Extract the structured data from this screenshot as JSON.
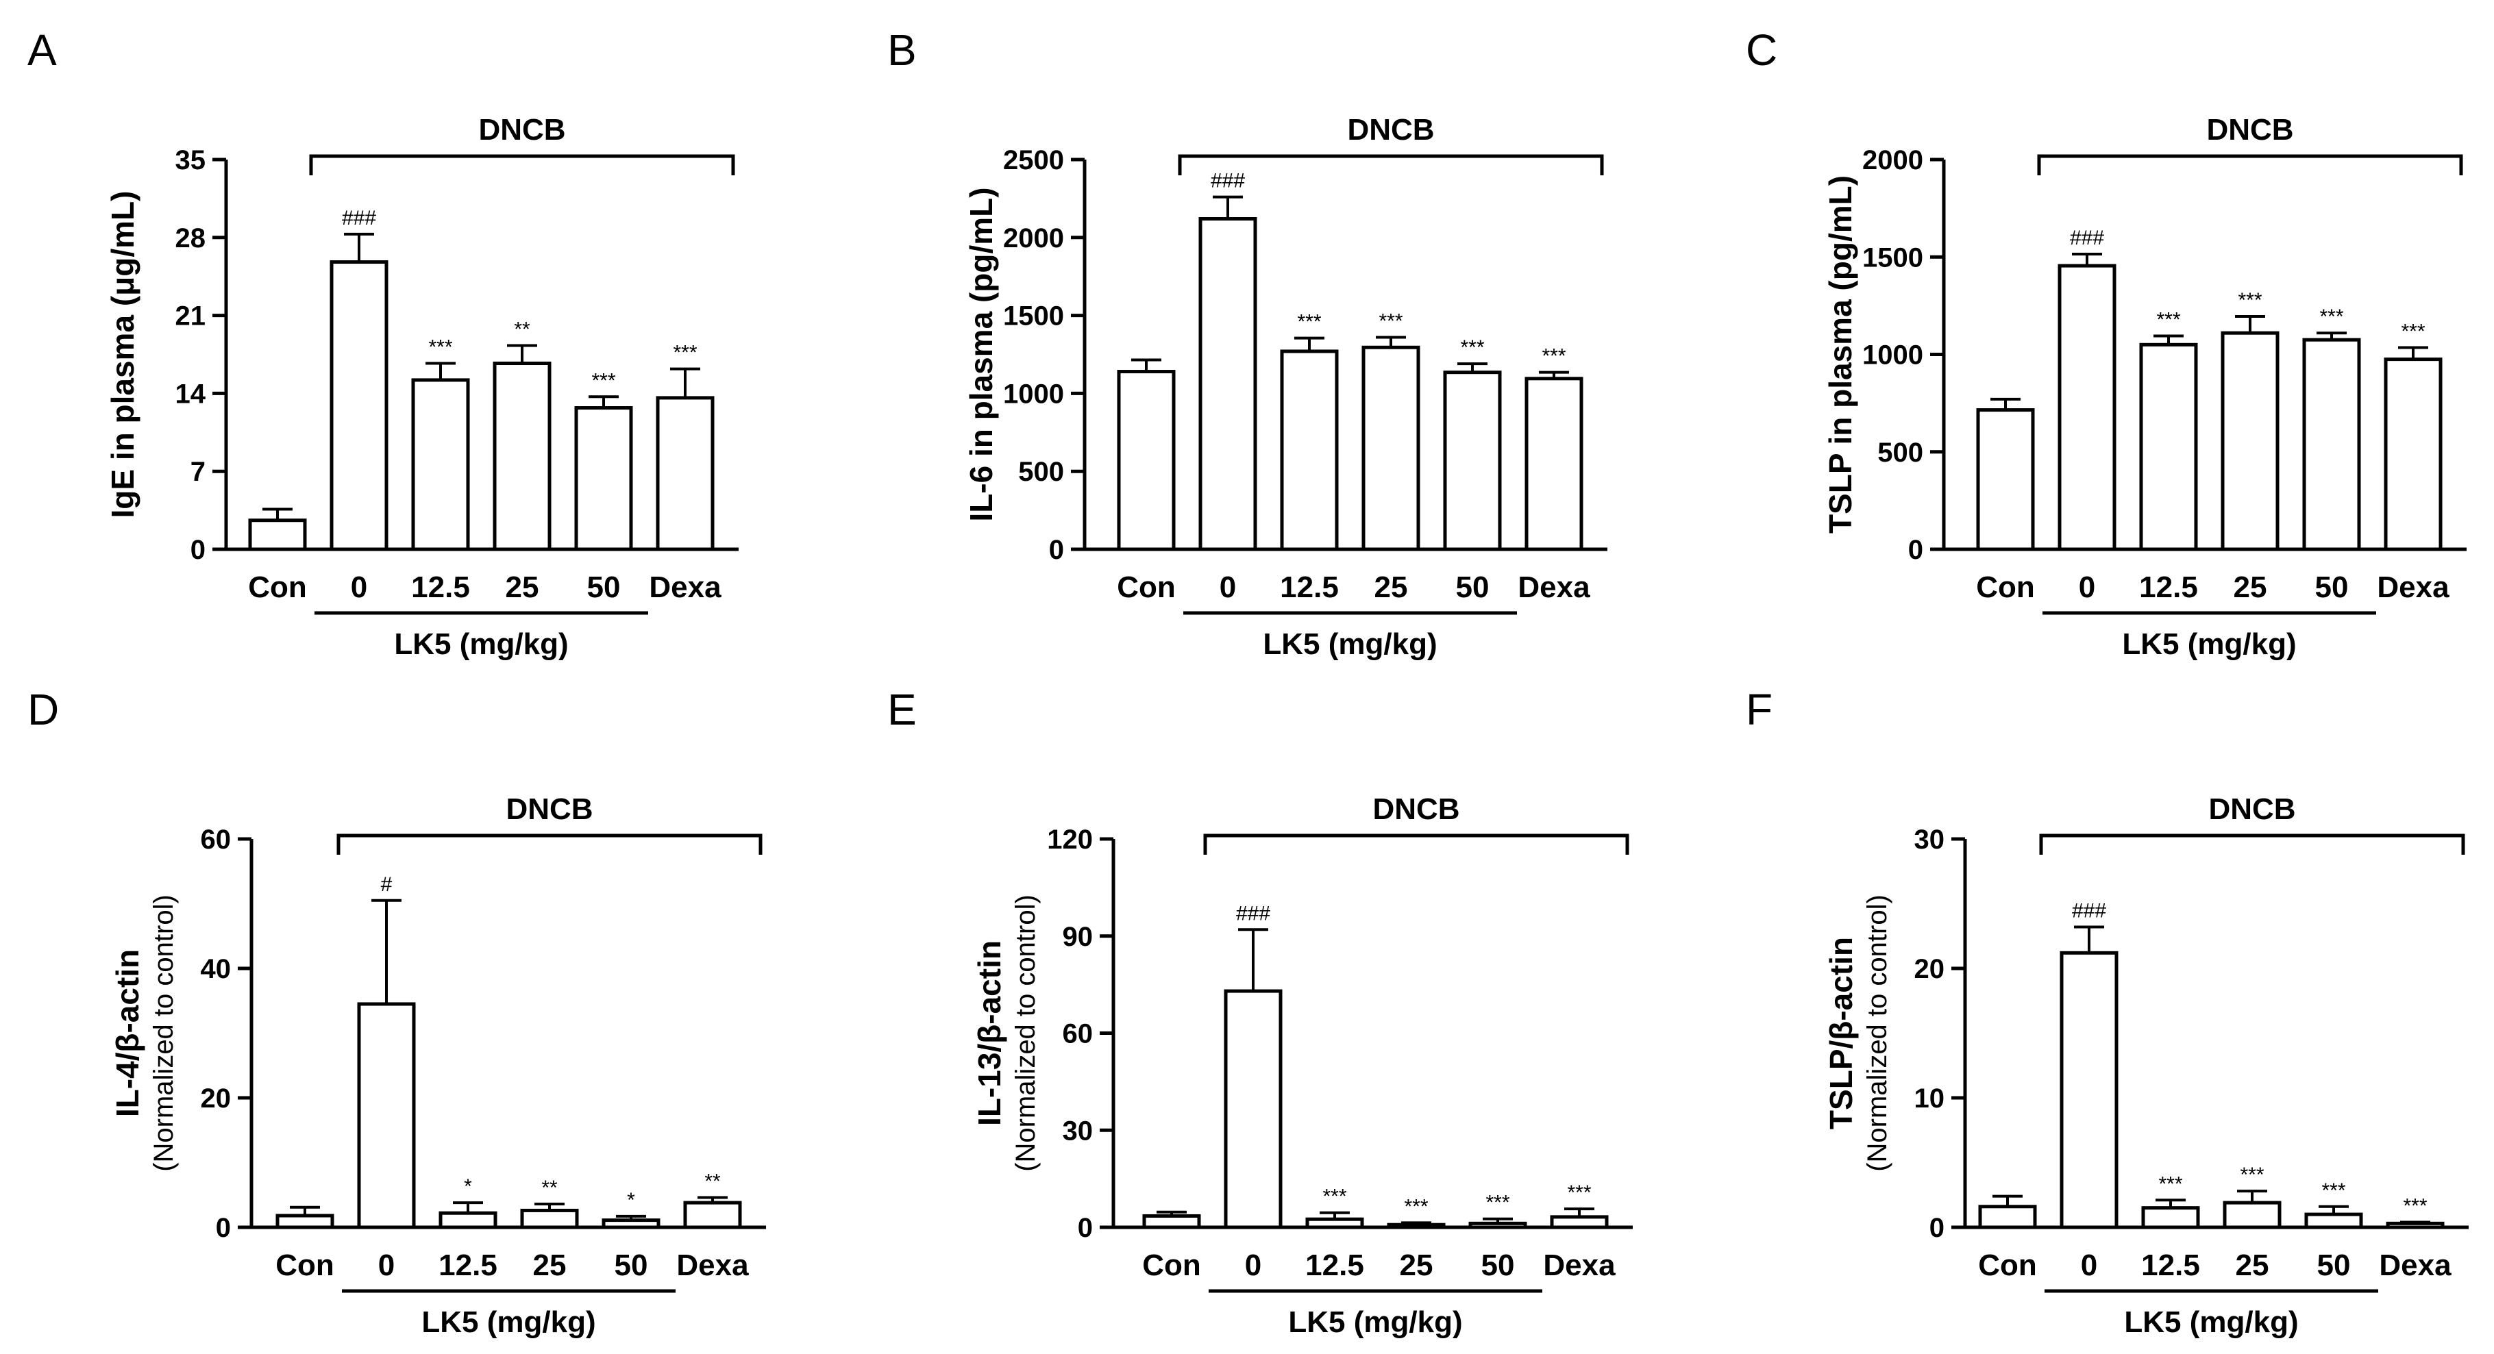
{
  "colors": {
    "bar_fill": "#ffffff",
    "stroke": "#000000",
    "background": "#ffffff"
  },
  "chart_data": [
    {
      "panel": "A",
      "type": "bar",
      "ylabel": "IgE in plasma (μg/mL)",
      "ylabel_sub": "",
      "yticks": [
        "0",
        "7",
        "14",
        "21",
        "28",
        "35"
      ],
      "ylim": [
        0,
        35
      ],
      "categories": [
        "Con",
        "0",
        "12.5",
        "25",
        "50",
        "Dexa"
      ],
      "values": [
        2.6,
        25.8,
        15.2,
        16.7,
        12.7,
        13.6
      ],
      "errors": [
        1.0,
        2.5,
        1.5,
        1.6,
        1.0,
        2.6
      ],
      "significance": [
        "",
        "###",
        "***",
        "**",
        "***",
        "***"
      ],
      "treatment_label": "DNCB",
      "group_label": "LK5 (mg/kg)"
    },
    {
      "panel": "B",
      "type": "bar",
      "ylabel": "IL-6 in plasma (pg/mL)",
      "ylabel_sub": "",
      "yticks": [
        "0",
        "500",
        "1000",
        "1500",
        "2000",
        "2500"
      ],
      "ylim": [
        0,
        2500
      ],
      "categories": [
        "Con",
        "0",
        "12.5",
        "25",
        "50",
        "Dexa"
      ],
      "values": [
        1140,
        2120,
        1270,
        1295,
        1135,
        1095
      ],
      "errors": [
        75,
        140,
        85,
        65,
        55,
        40
      ],
      "significance": [
        "",
        "###",
        "***",
        "***",
        "***",
        "***"
      ],
      "treatment_label": "DNCB",
      "group_label": "LK5 (mg/kg)"
    },
    {
      "panel": "C",
      "type": "bar",
      "ylabel": "TSLP in plasma (pg/mL)",
      "ylabel_sub": "",
      "yticks": [
        "0",
        "500",
        "1000",
        "1500",
        "2000"
      ],
      "ylim": [
        0,
        2000
      ],
      "categories": [
        "Con",
        "0",
        "12.5",
        "25",
        "50",
        "Dexa"
      ],
      "values": [
        715,
        1455,
        1050,
        1110,
        1075,
        975
      ],
      "errors": [
        55,
        60,
        45,
        85,
        35,
        60
      ],
      "significance": [
        "",
        "###",
        "***",
        "***",
        "***",
        "***"
      ],
      "treatment_label": "DNCB",
      "group_label": "LK5 (mg/kg)"
    },
    {
      "panel": "D",
      "type": "bar",
      "ylabel": "IL-4/β-actin",
      "ylabel_sub": "(Normalized to control)",
      "yticks": [
        "0",
        "20",
        "40",
        "60"
      ],
      "ylim": [
        0,
        60
      ],
      "categories": [
        "Con",
        "0",
        "12.5",
        "25",
        "50",
        "Dexa"
      ],
      "values": [
        1.8,
        34.5,
        2.2,
        2.6,
        1.1,
        3.8
      ],
      "errors": [
        1.3,
        16.0,
        1.6,
        1.0,
        0.6,
        0.8
      ],
      "significance": [
        "",
        "#",
        "*",
        "**",
        "*",
        "**"
      ],
      "treatment_label": "DNCB",
      "group_label": "LK5 (mg/kg)"
    },
    {
      "panel": "E",
      "type": "bar",
      "ylabel": "IL-13/β-actin",
      "ylabel_sub": "(Normalized to control)",
      "yticks": [
        "0",
        "30",
        "60",
        "90",
        "120"
      ],
      "ylim": [
        0,
        120
      ],
      "categories": [
        "Con",
        "0",
        "12.5",
        "25",
        "50",
        "Dexa"
      ],
      "values": [
        3.5,
        73.0,
        2.5,
        0.8,
        1.2,
        3.2
      ],
      "errors": [
        1.2,
        19.0,
        2.0,
        0.6,
        1.4,
        2.5
      ],
      "significance": [
        "",
        "###",
        "***",
        "***",
        "***",
        "***"
      ],
      "treatment_label": "DNCB",
      "group_label": "LK5 (mg/kg)"
    },
    {
      "panel": "F",
      "type": "bar",
      "ylabel": "TSLP/β-actin",
      "ylabel_sub": "(Normalized to control)",
      "yticks": [
        "0",
        "10",
        "20",
        "30"
      ],
      "ylim": [
        0,
        30
      ],
      "categories": [
        "Con",
        "0",
        "12.5",
        "25",
        "50",
        "Dexa"
      ],
      "values": [
        1.6,
        21.2,
        1.5,
        1.9,
        1.0,
        0.3
      ],
      "errors": [
        0.8,
        2.0,
        0.6,
        0.9,
        0.6,
        0.1
      ],
      "significance": [
        "",
        "###",
        "***",
        "***",
        "***",
        "***"
      ],
      "treatment_label": "DNCB",
      "group_label": "LK5 (mg/kg)"
    }
  ]
}
